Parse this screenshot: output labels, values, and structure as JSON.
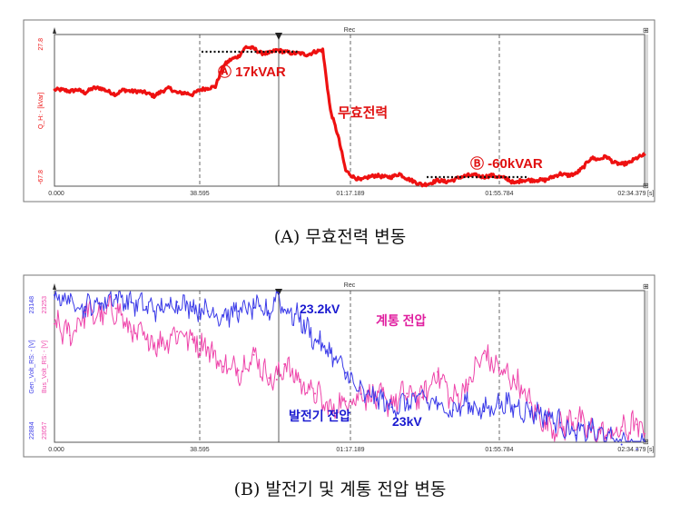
{
  "captions": {
    "a": "(A) 무효전력 변동",
    "b": "(B) 발전기 및 계통 전압 변동"
  },
  "colors": {
    "reactive": "#ee1111",
    "gen_voltage": "#3a3ae8",
    "bus_voltage": "#ee44aa",
    "annot_blue": "#1a1ad0",
    "annot_magenta": "#e020a0",
    "annot_red": "#e01010"
  },
  "chart_data": [
    {
      "id": "A",
      "type": "line",
      "title": "Rec",
      "ylabel": "Q_H: - [kVar]",
      "y_ticks": [
        "27.8",
        "-67.8"
      ],
      "ylim": [
        -67.8,
        27.8
      ],
      "x_ticks": [
        "0.000",
        "38.595",
        "01:17.189",
        "01:55.784",
        "02:34.379"
      ],
      "x_unit": "[s]",
      "grid": "dashed vertical lines at 38.595, 01:17.189, 01:55.784",
      "cursor_x": 58,
      "annotations": [
        {
          "text": "Ⓐ 17kVAR",
          "value": 17
        },
        {
          "text": "무효전력"
        },
        {
          "text": "Ⓑ -60kVAR",
          "value": -60
        }
      ],
      "series": [
        {
          "color_key": "reactive",
          "x": [
            0,
            2,
            4,
            6,
            8,
            10,
            12,
            14,
            16,
            18,
            20,
            22,
            24,
            26,
            28,
            30,
            32,
            34,
            36,
            38,
            40,
            42,
            44,
            46,
            48,
            50,
            52,
            54,
            56,
            58,
            60,
            62,
            64,
            66,
            68,
            70,
            72,
            74,
            76,
            78,
            80,
            82,
            84,
            86,
            88,
            90,
            92,
            94,
            96,
            98,
            100,
            102,
            104,
            106,
            108,
            110,
            112,
            114,
            116,
            118,
            120,
            122,
            124,
            126,
            128,
            130,
            132,
            134,
            136,
            138,
            140,
            142,
            144,
            146,
            148,
            150,
            152,
            154
          ],
          "values": [
            -7,
            -7,
            -8,
            -7,
            -9,
            -6,
            -6,
            -8,
            -10,
            -7,
            -8,
            -8,
            -9,
            -11,
            -8,
            -6,
            -9,
            -9,
            -10,
            -7,
            -6,
            -5,
            8,
            12,
            14,
            20,
            19,
            16,
            16,
            18,
            17,
            16,
            16,
            15,
            17,
            18,
            -20,
            -36,
            -58,
            -62,
            -64,
            -62,
            -61,
            -62,
            -62,
            -60,
            -63,
            -65,
            -67,
            -66,
            -64,
            -65,
            -64,
            -62,
            -61,
            -61,
            -62,
            -61,
            -62,
            -63,
            -66,
            -64,
            -64,
            -64,
            -64,
            -62,
            -60,
            -61,
            -60,
            -56,
            -50,
            -51,
            -49,
            -53,
            -54,
            -53,
            -50,
            -48
          ]
        }
      ]
    },
    {
      "id": "B",
      "type": "line",
      "title": "Rec",
      "ylabels": [
        "Gen_Volt_RS: - [V]",
        "Bus_Volt_RS: - [V]"
      ],
      "y_ticks_left": [
        "23148",
        "22884"
      ],
      "y_ticks_right": [
        "23253",
        "23057"
      ],
      "x_ticks": [
        "0.000",
        "38.595",
        "01:17.189",
        "01:55.784",
        "02:34.379"
      ],
      "x_unit": "[s]",
      "grid": "dashed vertical lines at 38.595, 01:17.189, 01:55.784",
      "cursor_x": 58,
      "annotations": [
        {
          "text": "23.2kV"
        },
        {
          "text": "계통 전압"
        },
        {
          "text": "발전기 전압"
        },
        {
          "text": "23kV"
        }
      ],
      "series": [
        {
          "name": "Gen_Volt_RS",
          "color_key": "gen_voltage",
          "x": [
            0,
            4,
            8,
            12,
            16,
            20,
            24,
            28,
            32,
            36,
            40,
            44,
            48,
            52,
            56,
            58,
            60,
            64,
            68,
            72,
            76,
            80,
            84,
            88,
            92,
            96,
            100,
            104,
            108,
            112,
            116,
            120,
            124,
            128,
            132,
            136,
            140,
            144,
            148,
            152,
            154
          ],
          "values": [
            23140,
            23130,
            23120,
            23125,
            23140,
            23128,
            23120,
            23115,
            23128,
            23120,
            23112,
            23105,
            23112,
            23118,
            23108,
            23145,
            23115,
            23100,
            23062,
            23040,
            23005,
            22968,
            22962,
            22945,
            22952,
            22962,
            22948,
            22940,
            22952,
            22938,
            22952,
            22946,
            22938,
            22932,
            22918,
            22896,
            22905,
            22892,
            22880,
            22872,
            22886
          ]
        },
        {
          "name": "Bus_Volt_RS",
          "color_key": "bus_voltage",
          "x": [
            0,
            4,
            8,
            12,
            16,
            20,
            24,
            28,
            32,
            36,
            40,
            44,
            48,
            52,
            56,
            58,
            60,
            64,
            68,
            72,
            76,
            80,
            84,
            88,
            92,
            96,
            100,
            104,
            108,
            112,
            116,
            120,
            124,
            128,
            132,
            136,
            140,
            144,
            148,
            152,
            154
          ],
          "values": [
            23210,
            23195,
            23225,
            23220,
            23230,
            23200,
            23190,
            23185,
            23200,
            23190,
            23180,
            23155,
            23150,
            23170,
            23140,
            23138,
            23158,
            23135,
            23120,
            23098,
            23110,
            23120,
            23115,
            23108,
            23120,
            23115,
            23148,
            23110,
            23132,
            23172,
            23150,
            23138,
            23108,
            23082,
            23076,
            23088,
            23070,
            23066,
            23072,
            23080,
            23068
          ]
        }
      ]
    }
  ]
}
